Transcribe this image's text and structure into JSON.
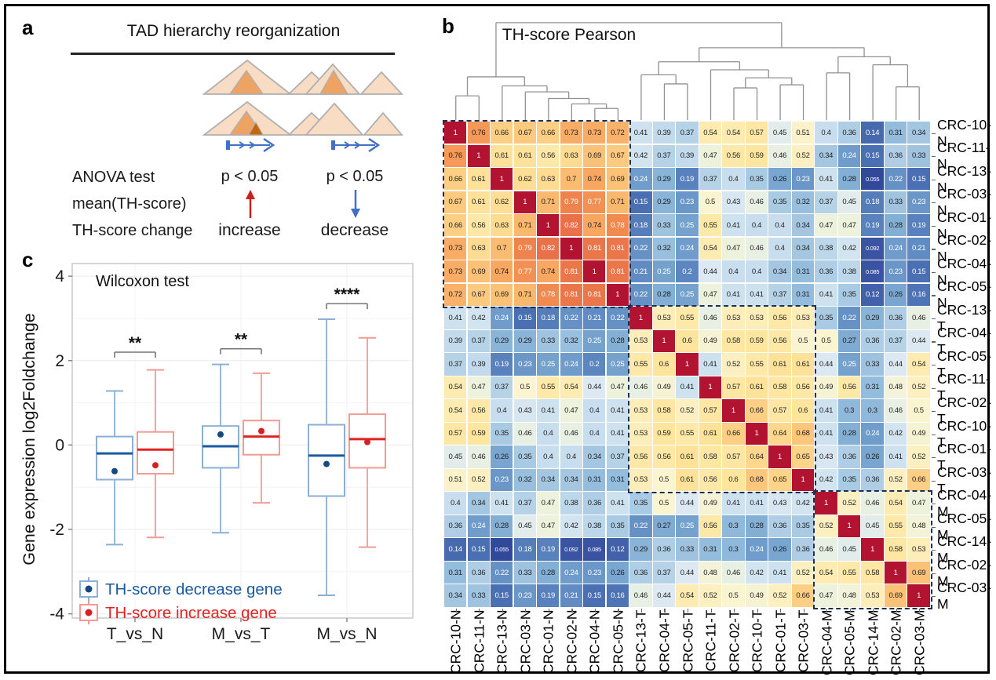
{
  "panel_a": {
    "label": "a",
    "title": "TAD hierarchy reorganization",
    "icons": [
      "tad-triangle-nested",
      "tad-triangle-plain",
      "gene-track-arrow",
      "red-up-arrow",
      "blue-down-arrow"
    ],
    "rows": [
      {
        "name": "ANOVA test",
        "left": "p < 0.05",
        "right": "p < 0.05"
      },
      {
        "name": "mean(TH-score)",
        "left_icon": "red-up-arrow",
        "right_icon": "blue-down-arrow"
      },
      {
        "name": "TH-score change",
        "left": "increase",
        "right": "decrease"
      }
    ]
  },
  "panel_b": {
    "label": "b",
    "title": "TH-score Pearson"
  },
  "panel_c": {
    "label": "c",
    "annotation": "Wilcoxon test",
    "ylabel": "Gene expression log2Foldchange"
  },
  "colors": {
    "figure_border": "#000000",
    "dashed_cluster_box": "#1d2f52",
    "dendrogram_line": "#909090",
    "blue_series": "#1b5a9e",
    "blue_light": "#8ab0d5",
    "red_series": "#e32222",
    "red_light": "#f29b94",
    "heatmap_high": "#b11331",
    "heatmap_low": "#2c3e91"
  },
  "chart_data": [
    {
      "id": "th_score_pearson_heatmap",
      "type": "heatmap",
      "title": "TH-score Pearson",
      "legend_position": "none",
      "grid": true,
      "value_range": [
        0,
        1
      ],
      "labels": [
        "CRC-10-N",
        "CRC-11-N",
        "CRC-13-N",
        "CRC-03-N",
        "CRC-01-N",
        "CRC-02-N",
        "CRC-04-N",
        "CRC-05-N",
        "CRC-13-T",
        "CRC-04-T",
        "CRC-05-T",
        "CRC-11-T",
        "CRC-02-T",
        "CRC-10-T",
        "CRC-01-T",
        "CRC-03-T",
        "CRC-04-M",
        "CRC-05-M",
        "CRC-14-M",
        "CRC-02-M",
        "CRC-03-M"
      ],
      "matrix": [
        [
          1,
          0.76,
          0.66,
          0.67,
          0.66,
          0.73,
          0.73,
          0.72,
          0.41,
          0.39,
          0.37,
          0.54,
          0.54,
          0.57,
          0.45,
          0.51,
          0.4,
          0.36,
          0.14,
          0.31,
          0.34
        ],
        [
          0.76,
          1,
          0.61,
          0.61,
          0.56,
          0.63,
          0.69,
          0.67,
          0.42,
          0.37,
          0.39,
          0.47,
          0.56,
          0.59,
          0.46,
          0.52,
          0.34,
          0.24,
          0.15,
          0.36,
          0.33
        ],
        [
          0.66,
          0.61,
          1,
          0.62,
          0.63,
          0.7,
          0.74,
          0.69,
          0.24,
          0.29,
          0.19,
          0.37,
          0.4,
          0.35,
          0.26,
          0.23,
          0.41,
          0.28,
          0.055,
          0.22,
          0.15
        ],
        [
          0.67,
          0.61,
          0.62,
          1,
          0.71,
          0.79,
          0.77,
          0.71,
          0.15,
          0.29,
          0.23,
          0.5,
          0.43,
          0.46,
          0.35,
          0.32,
          0.37,
          0.45,
          0.18,
          0.33,
          0.23
        ],
        [
          0.66,
          0.56,
          0.63,
          0.71,
          1,
          0.82,
          0.74,
          0.78,
          0.18,
          0.33,
          0.25,
          0.55,
          0.41,
          0.4,
          0.4,
          0.34,
          0.47,
          0.47,
          0.19,
          0.28,
          0.19
        ],
        [
          0.73,
          0.63,
          0.7,
          0.79,
          0.82,
          1,
          0.81,
          0.81,
          0.22,
          0.32,
          0.24,
          0.54,
          0.47,
          0.46,
          0.4,
          0.34,
          0.38,
          0.42,
          0.092,
          0.24,
          0.21
        ],
        [
          0.73,
          0.69,
          0.74,
          0.77,
          0.74,
          0.81,
          1,
          0.81,
          0.21,
          0.25,
          0.2,
          0.44,
          0.4,
          0.4,
          0.34,
          0.31,
          0.36,
          0.38,
          0.085,
          0.23,
          0.15
        ],
        [
          0.72,
          0.67,
          0.69,
          0.71,
          0.78,
          0.81,
          0.81,
          1,
          0.22,
          0.28,
          0.25,
          0.47,
          0.41,
          0.41,
          0.37,
          0.31,
          0.41,
          0.35,
          0.12,
          0.26,
          0.16
        ],
        [
          0.41,
          0.42,
          0.24,
          0.15,
          0.18,
          0.22,
          0.21,
          0.22,
          1,
          0.53,
          0.55,
          0.46,
          0.53,
          0.53,
          0.56,
          0.53,
          0.35,
          0.22,
          0.29,
          0.36,
          0.46
        ],
        [
          0.39,
          0.37,
          0.29,
          0.29,
          0.33,
          0.32,
          0.25,
          0.28,
          0.53,
          1,
          0.6,
          0.49,
          0.58,
          0.59,
          0.56,
          0.5,
          0.5,
          0.27,
          0.36,
          0.37,
          0.44
        ],
        [
          0.37,
          0.39,
          0.19,
          0.23,
          0.25,
          0.24,
          0.2,
          0.25,
          0.55,
          0.6,
          1,
          0.41,
          0.52,
          0.55,
          0.61,
          0.61,
          0.44,
          0.25,
          0.33,
          0.44,
          0.54
        ],
        [
          0.54,
          0.47,
          0.37,
          0.5,
          0.55,
          0.54,
          0.44,
          0.47,
          0.46,
          0.49,
          0.41,
          1,
          0.57,
          0.61,
          0.58,
          0.56,
          0.49,
          0.56,
          0.31,
          0.48,
          0.52
        ],
        [
          0.54,
          0.56,
          0.4,
          0.43,
          0.41,
          0.47,
          0.4,
          0.41,
          0.53,
          0.58,
          0.52,
          0.57,
          1,
          0.66,
          0.57,
          0.6,
          0.41,
          0.3,
          0.3,
          0.46,
          0.5
        ],
        [
          0.57,
          0.59,
          0.35,
          0.46,
          0.4,
          0.46,
          0.4,
          0.41,
          0.53,
          0.59,
          0.55,
          0.61,
          0.66,
          1,
          0.64,
          0.68,
          0.41,
          0.28,
          0.24,
          0.42,
          0.49
        ],
        [
          0.45,
          0.46,
          0.26,
          0.35,
          0.4,
          0.4,
          0.34,
          0.37,
          0.56,
          0.56,
          0.61,
          0.58,
          0.57,
          0.64,
          1,
          0.65,
          0.43,
          0.36,
          0.26,
          0.41,
          0.52
        ],
        [
          0.51,
          0.52,
          0.23,
          0.32,
          0.34,
          0.34,
          0.31,
          0.31,
          0.53,
          0.5,
          0.61,
          0.56,
          0.6,
          0.68,
          0.65,
          1,
          0.42,
          0.35,
          0.36,
          0.52,
          0.66
        ],
        [
          0.4,
          0.34,
          0.41,
          0.37,
          0.47,
          0.38,
          0.36,
          0.41,
          0.35,
          0.5,
          0.44,
          0.49,
          0.41,
          0.41,
          0.43,
          0.42,
          1,
          0.52,
          0.46,
          0.54,
          0.47
        ],
        [
          0.36,
          0.24,
          0.28,
          0.45,
          0.47,
          0.42,
          0.38,
          0.35,
          0.22,
          0.27,
          0.25,
          0.56,
          0.3,
          0.28,
          0.36,
          0.35,
          0.52,
          1,
          0.45,
          0.55,
          0.48
        ],
        [
          0.14,
          0.15,
          0.055,
          0.18,
          0.19,
          0.092,
          0.085,
          0.12,
          0.29,
          0.36,
          0.33,
          0.31,
          0.3,
          0.24,
          0.26,
          0.36,
          0.46,
          0.45,
          1,
          0.58,
          0.53
        ],
        [
          0.31,
          0.36,
          0.22,
          0.33,
          0.28,
          0.24,
          0.23,
          0.26,
          0.36,
          0.37,
          0.44,
          0.48,
          0.46,
          0.42,
          0.41,
          0.52,
          0.54,
          0.55,
          0.58,
          1,
          0.69
        ],
        [
          0.34,
          0.33,
          0.15,
          0.23,
          0.19,
          0.21,
          0.15,
          0.16,
          0.46,
          0.44,
          0.54,
          0.52,
          0.5,
          0.49,
          0.52,
          0.66,
          0.47,
          0.48,
          0.53,
          0.69,
          1
        ]
      ],
      "cluster_blocks": [
        [
          0,
          8
        ],
        [
          8,
          16
        ],
        [
          16,
          21
        ]
      ],
      "colormap_stops": [
        [
          0.0,
          "#2c3e91"
        ],
        [
          0.06,
          "#33499c"
        ],
        [
          0.1,
          "#3c57a5"
        ],
        [
          0.15,
          "#4a6fb2"
        ],
        [
          0.2,
          "#5c86c0"
        ],
        [
          0.25,
          "#74a2cd"
        ],
        [
          0.3,
          "#8fb8da"
        ],
        [
          0.35,
          "#a9cae3"
        ],
        [
          0.4,
          "#c8deee"
        ],
        [
          0.44,
          "#dde9f2"
        ],
        [
          0.47,
          "#edf2dc"
        ],
        [
          0.5,
          "#fbf4d1"
        ],
        [
          0.55,
          "#fee9a9"
        ],
        [
          0.6,
          "#fee59d"
        ],
        [
          0.65,
          "#fdd488"
        ],
        [
          0.7,
          "#fbbc72"
        ],
        [
          0.74,
          "#f8a660"
        ],
        [
          0.78,
          "#f18a50"
        ],
        [
          0.83,
          "#e76946"
        ],
        [
          0.88,
          "#d94a38"
        ],
        [
          0.93,
          "#c93136"
        ],
        [
          1.0,
          "#b11331"
        ]
      ],
      "white_text_below": 0.255,
      "white_text_above": 0.765,
      "dendrogram": {
        "h": 0.97,
        "c": [
          {
            "h": 0.43,
            "c": [
              {
                "h": 0.24,
                "c": [
                  0,
                  1
                ]
              },
              {
                "h": 0.34,
                "c": [
                  2,
                  {
                    "h": 0.28,
                    "c": [
                      3,
                      {
                        "h": 0.215,
                        "c": [
                          4,
                          {
                            "h": 0.16,
                            "c": [
                              5,
                              {
                                "h": 0.115,
                                "c": [
                                  6,
                                  7
                                ]
                              }
                            ]
                          }
                        ]
                      }
                    ]
                  }
                ]
              }
            ]
          },
          {
            "h": 0.72,
            "c": [
              {
                "h": 0.58,
                "c": [
                  {
                    "h": 0.45,
                    "c": [
                      8,
                      {
                        "h": 0.36,
                        "c": [
                          9,
                          10
                        ]
                      }
                    ]
                  },
                  {
                    "h": 0.5,
                    "c": [
                      11,
                      {
                        "h": 0.42,
                        "c": [
                          {
                            "h": 0.32,
                            "c": [
                              12,
                              13
                            ]
                          },
                          {
                            "h": 0.35,
                            "c": [
                              14,
                              15
                            ]
                          }
                        ]
                      }
                    ]
                  }
                ]
              },
              {
                "h": 0.63,
                "c": [
                  {
                    "h": 0.47,
                    "c": [
                      16,
                      17
                    ]
                  },
                  {
                    "h": 0.55,
                    "c": [
                      18,
                      {
                        "h": 0.33,
                        "c": [
                          19,
                          20
                        ]
                      }
                    ]
                  }
                ]
              }
            ]
          }
        ]
      }
    },
    {
      "id": "gene_expression_boxplot",
      "type": "boxplot",
      "annotation": "Wilcoxon test",
      "ylabel": "Gene expression log2Foldchange",
      "ylim": [
        -4.1,
        4.3
      ],
      "yticks": [
        4,
        2,
        0,
        -2,
        -4
      ],
      "grid": true,
      "legend_position": "bottom-left-inside",
      "categories": [
        "T_vs_N",
        "M_vs_T",
        "M_vs_N"
      ],
      "series": [
        {
          "name": "TH-score decrease gene",
          "box_stroke": "#8ab0d5",
          "median_color": "#1b5a9e",
          "dot_color": "#16497f",
          "text_color": "#1b5a9e",
          "boxes": [
            {
              "low": -2.36,
              "q1": -0.82,
              "median": -0.2,
              "q3": 0.2,
              "high": 1.28,
              "mean": -0.62
            },
            {
              "low": -2.08,
              "q1": -0.54,
              "median": -0.03,
              "q3": 0.45,
              "high": 1.91,
              "mean": 0.25
            },
            {
              "low": -3.56,
              "q1": -1.21,
              "median": -0.25,
              "q3": 0.48,
              "high": 2.98,
              "mean": -0.45
            }
          ]
        },
        {
          "name": "TH-score increase gene",
          "box_stroke": "#f29b94",
          "median_color": "#e32222",
          "dot_color": "#d91f1f",
          "text_color": "#e32222",
          "boxes": [
            {
              "low": -2.19,
              "q1": -0.68,
              "median": -0.11,
              "q3": 0.31,
              "high": 1.78,
              "mean": -0.48
            },
            {
              "low": -1.37,
              "q1": -0.23,
              "median": 0.2,
              "q3": 0.58,
              "high": 1.7,
              "mean": 0.33
            },
            {
              "low": -2.42,
              "q1": -0.54,
              "median": 0.14,
              "q3": 0.73,
              "high": 2.54,
              "mean": 0.07
            }
          ]
        }
      ],
      "significance": [
        {
          "category": "T_vs_N",
          "label": "**",
          "y": 2.2
        },
        {
          "category": "M_vs_T",
          "label": "**",
          "y": 2.28
        },
        {
          "category": "M_vs_N",
          "label": "****",
          "y": 3.35
        }
      ]
    }
  ]
}
